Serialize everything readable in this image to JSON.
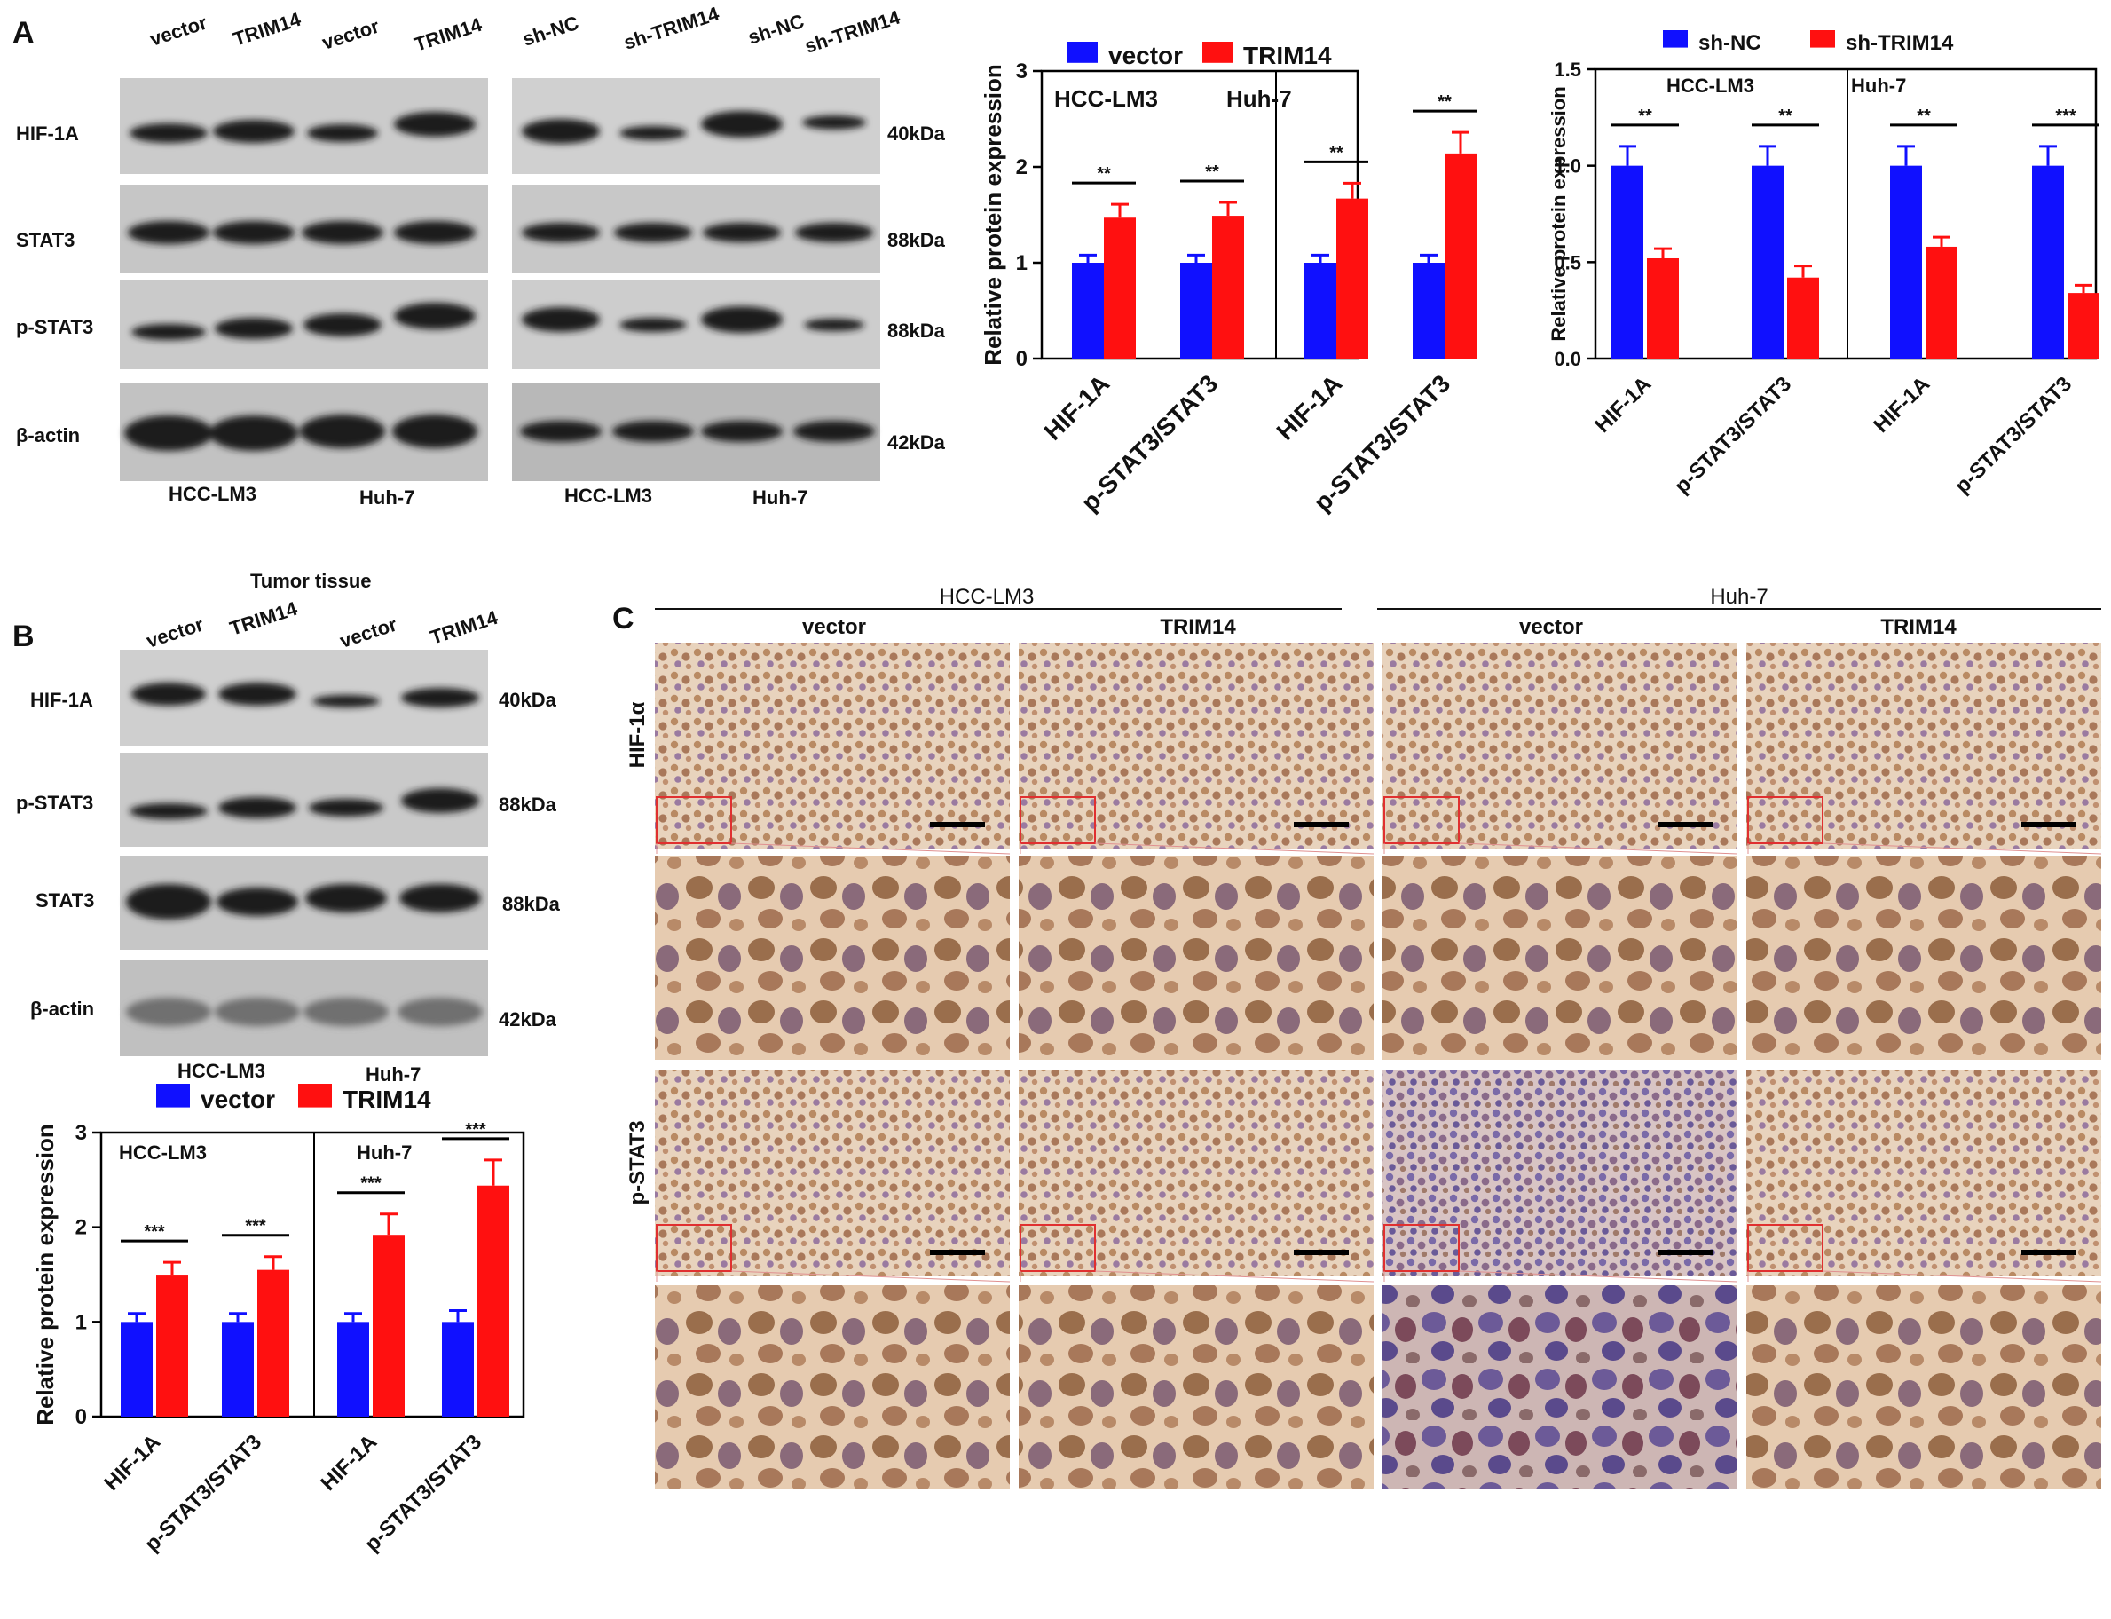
{
  "panels": {
    "A": {
      "letter": "A",
      "blot_left": {
        "col_labels": [
          "vector",
          "TRIM14",
          "vector",
          "TRIM14"
        ],
        "row_labels": [
          "HIF-1A",
          "STAT3",
          "p-STAT3",
          "β-actin"
        ],
        "cell_lines": [
          "HCC-LM3",
          "Huh-7"
        ]
      },
      "blot_right": {
        "col_labels": [
          "sh-NC",
          "sh-TRIM14",
          "sh-NC",
          "sh-TRIM14"
        ],
        "mw_labels": [
          "40kDa",
          "88kDa",
          "88kDa",
          "42kDa"
        ],
        "cell_lines": [
          "HCC-LM3",
          "Huh-7"
        ]
      }
    },
    "B": {
      "letter": "B",
      "blot": {
        "title": "Tumor tissue",
        "col_labels": [
          "vector",
          "TRIM14",
          "vector",
          "TRIM14"
        ],
        "row_labels": [
          "HIF-1A",
          "p-STAT3",
          "STAT3",
          "β-actin"
        ],
        "mw_labels": [
          "40kDa",
          "88kDa",
          "88kDa",
          "42kDa"
        ],
        "cell_lines": [
          "HCC-LM3",
          "Huh-7"
        ]
      }
    },
    "C": {
      "letter": "C",
      "group_labels": [
        "HCC-LM3",
        "Huh-7"
      ],
      "col_labels": [
        "vector",
        "TRIM14",
        "vector",
        "TRIM14"
      ],
      "row_labels": [
        "HIF-1α",
        "p-STAT3"
      ]
    }
  },
  "colors": {
    "series1": "#1010ff",
    "series2": "#ff1010",
    "axis": "#000000",
    "tissue_light": "#e9d2bb",
    "tissue_dark": "#a0704a",
    "nucleus_blue": "#7a6aa8"
  },
  "chart_data": [
    {
      "id": "A_middle",
      "type": "bar",
      "ylabel": "Relative protein expression",
      "ylim": [
        0,
        3
      ],
      "yticks": [
        "0",
        "1",
        "2",
        "3"
      ],
      "groups": [
        "HCC-LM3",
        "Huh-7"
      ],
      "categories": [
        "HIF-1A",
        "p-STAT3/STAT3",
        "HIF-1A",
        "p-STAT3/STAT3"
      ],
      "series": [
        {
          "name": "vector",
          "values": [
            1.0,
            1.0,
            1.0,
            1.0
          ],
          "errors": [
            0.08,
            0.08,
            0.08,
            0.08
          ]
        },
        {
          "name": "TRIM14",
          "values": [
            1.47,
            1.49,
            1.67,
            2.14
          ],
          "errors": [
            0.14,
            0.14,
            0.16,
            0.22
          ]
        }
      ],
      "significance": [
        "**",
        "**",
        "**",
        "**"
      ],
      "legend": "top"
    },
    {
      "id": "A_right",
      "type": "bar",
      "ylabel": "Relative protein expression",
      "ylim": [
        0,
        1.5
      ],
      "yticks": [
        "0.0",
        "0.5",
        "1.0",
        "1.5"
      ],
      "groups": [
        "HCC-LM3",
        "Huh-7"
      ],
      "categories": [
        "HIF-1A",
        "p-STAT3/STAT3",
        "HIF-1A",
        "p-STAT3/STAT3"
      ],
      "series": [
        {
          "name": "sh-NC",
          "values": [
            1.0,
            1.0,
            1.0,
            1.0
          ],
          "errors": [
            0.1,
            0.1,
            0.1,
            0.1
          ]
        },
        {
          "name": "sh-TRIM14",
          "values": [
            0.52,
            0.42,
            0.58,
            0.34
          ],
          "errors": [
            0.05,
            0.06,
            0.05,
            0.04
          ]
        }
      ],
      "significance": [
        "**",
        "**",
        "**",
        "***"
      ],
      "legend": "top"
    },
    {
      "id": "B_bottom",
      "type": "bar",
      "ylabel": "Relative protein expression",
      "ylim": [
        0,
        3
      ],
      "yticks": [
        "0",
        "1",
        "2",
        "3"
      ],
      "groups": [
        "HCC-LM3",
        "Huh-7"
      ],
      "categories": [
        "HIF-1A",
        "p-STAT3/STAT3",
        "HIF-1A",
        "p-STAT3/STAT3"
      ],
      "series": [
        {
          "name": "vector",
          "values": [
            1.0,
            1.0,
            1.0,
            1.0
          ],
          "errors": [
            0.09,
            0.09,
            0.09,
            0.12
          ]
        },
        {
          "name": "TRIM14",
          "values": [
            1.49,
            1.55,
            1.92,
            2.44
          ],
          "errors": [
            0.14,
            0.14,
            0.22,
            0.27
          ]
        }
      ],
      "significance": [
        "***",
        "***",
        "***",
        "***"
      ],
      "legend": "top"
    }
  ]
}
